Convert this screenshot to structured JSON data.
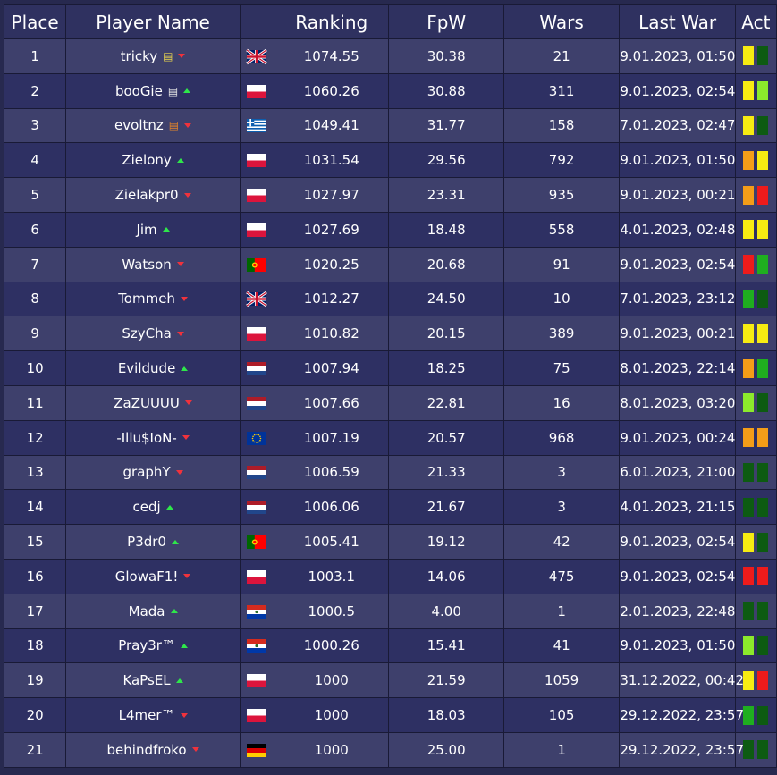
{
  "headers": {
    "place": "Place",
    "player_name": "Player Name",
    "flag": "",
    "ranking": "Ranking",
    "fpw": "FpW",
    "wars": "Wars",
    "last_war": "Last War",
    "act": "Act"
  },
  "colors": {
    "arrow_up": "#2ee64a",
    "arrow_down": "#f0323c",
    "gold_icon": "#e8d44d",
    "white_icon": "#e6e6e6",
    "orange_icon": "#e0832a"
  },
  "activity_colors": {
    "yellow": "#f7ec12",
    "dark_green": "#0d5b12",
    "light_green": "#8cea2c",
    "green": "#1fae1f",
    "orange": "#f49d18",
    "red": "#ee1b1b"
  },
  "rows": [
    {
      "place": "1",
      "name": "tricky",
      "icon": "ladder-icon",
      "icon_color": "#e8d44d",
      "trend": "down",
      "flag": "uk",
      "ranking": "1074.55",
      "fpw": "30.38",
      "wars": "21",
      "last_war": "9.01.2023, 01:50",
      "act": [
        "yellow",
        "dark_green"
      ]
    },
    {
      "place": "2",
      "name": "booGie",
      "icon": "ladder-icon",
      "icon_color": "#e6e6e6",
      "trend": "up",
      "flag": "pl",
      "ranking": "1060.26",
      "fpw": "30.88",
      "wars": "311",
      "last_war": "9.01.2023, 02:54",
      "act": [
        "yellow",
        "light_green"
      ]
    },
    {
      "place": "3",
      "name": "evoltnz",
      "icon": "ladder-icon",
      "icon_color": "#e0832a",
      "trend": "down",
      "flag": "gr",
      "ranking": "1049.41",
      "fpw": "31.77",
      "wars": "158",
      "last_war": "7.01.2023, 02:47",
      "act": [
        "yellow",
        "dark_green"
      ]
    },
    {
      "place": "4",
      "name": "Zielony",
      "icon": "",
      "icon_color": "",
      "trend": "up",
      "flag": "pl",
      "ranking": "1031.54",
      "fpw": "29.56",
      "wars": "792",
      "last_war": "9.01.2023, 01:50",
      "act": [
        "orange",
        "yellow"
      ]
    },
    {
      "place": "5",
      "name": "Zielakpr0",
      "icon": "",
      "icon_color": "",
      "trend": "down",
      "flag": "pl",
      "ranking": "1027.97",
      "fpw": "23.31",
      "wars": "935",
      "last_war": "9.01.2023, 00:21",
      "act": [
        "orange",
        "red"
      ]
    },
    {
      "place": "6",
      "name": "Jim",
      "icon": "",
      "icon_color": "",
      "trend": "up",
      "flag": "pl",
      "ranking": "1027.69",
      "fpw": "18.48",
      "wars": "558",
      "last_war": "4.01.2023, 02:48",
      "act": [
        "yellow",
        "yellow"
      ]
    },
    {
      "place": "7",
      "name": "Watson",
      "icon": "",
      "icon_color": "",
      "trend": "down",
      "flag": "pt",
      "ranking": "1020.25",
      "fpw": "20.68",
      "wars": "91",
      "last_war": "9.01.2023, 02:54",
      "act": [
        "red",
        "green"
      ]
    },
    {
      "place": "8",
      "name": "Tommeh",
      "icon": "",
      "icon_color": "",
      "trend": "down",
      "flag": "uk",
      "ranking": "1012.27",
      "fpw": "24.50",
      "wars": "10",
      "last_war": "7.01.2023, 23:12",
      "act": [
        "green",
        "dark_green"
      ]
    },
    {
      "place": "9",
      "name": "SzyCha",
      "icon": "",
      "icon_color": "",
      "trend": "down",
      "flag": "pl",
      "ranking": "1010.82",
      "fpw": "20.15",
      "wars": "389",
      "last_war": "9.01.2023, 00:21",
      "act": [
        "yellow",
        "yellow"
      ]
    },
    {
      "place": "10",
      "name": "Evildude",
      "icon": "",
      "icon_color": "",
      "trend": "up",
      "flag": "nl",
      "ranking": "1007.94",
      "fpw": "18.25",
      "wars": "75",
      "last_war": "8.01.2023, 22:14",
      "act": [
        "orange",
        "green"
      ]
    },
    {
      "place": "11",
      "name": "ZaZUUUU",
      "icon": "",
      "icon_color": "",
      "trend": "down",
      "flag": "nl",
      "ranking": "1007.66",
      "fpw": "22.81",
      "wars": "16",
      "last_war": "8.01.2023, 03:20",
      "act": [
        "light_green",
        "dark_green"
      ]
    },
    {
      "place": "12",
      "name": "-Illu$IoN-",
      "icon": "",
      "icon_color": "",
      "trend": "down",
      "flag": "eu",
      "ranking": "1007.19",
      "fpw": "20.57",
      "wars": "968",
      "last_war": "9.01.2023, 00:24",
      "act": [
        "orange",
        "orange"
      ]
    },
    {
      "place": "13",
      "name": "graphY",
      "icon": "",
      "icon_color": "",
      "trend": "down",
      "flag": "nl",
      "ranking": "1006.59",
      "fpw": "21.33",
      "wars": "3",
      "last_war": "6.01.2023, 21:00",
      "act": [
        "dark_green",
        "dark_green"
      ]
    },
    {
      "place": "14",
      "name": "cedj",
      "icon": "",
      "icon_color": "",
      "trend": "up",
      "flag": "nl",
      "ranking": "1006.06",
      "fpw": "21.67",
      "wars": "3",
      "last_war": "4.01.2023, 21:15",
      "act": [
        "dark_green",
        "dark_green"
      ]
    },
    {
      "place": "15",
      "name": "P3dr0",
      "icon": "",
      "icon_color": "",
      "trend": "up",
      "flag": "pt",
      "ranking": "1005.41",
      "fpw": "19.12",
      "wars": "42",
      "last_war": "9.01.2023, 02:54",
      "act": [
        "yellow",
        "dark_green"
      ]
    },
    {
      "place": "16",
      "name": "GlowaF1!",
      "icon": "",
      "icon_color": "",
      "trend": "down",
      "flag": "pl",
      "ranking": "1003.1",
      "fpw": "14.06",
      "wars": "475",
      "last_war": "9.01.2023, 02:54",
      "act": [
        "red",
        "red"
      ]
    },
    {
      "place": "17",
      "name": "Mada",
      "icon": "",
      "icon_color": "",
      "trend": "up",
      "flag": "py",
      "ranking": "1000.5",
      "fpw": "4.00",
      "wars": "1",
      "last_war": "2.01.2023, 22:48",
      "act": [
        "dark_green",
        "dark_green"
      ]
    },
    {
      "place": "18",
      "name": "Pray3r™",
      "icon": "",
      "icon_color": "",
      "trend": "up",
      "flag": "py",
      "ranking": "1000.26",
      "fpw": "15.41",
      "wars": "41",
      "last_war": "9.01.2023, 01:50",
      "act": [
        "light_green",
        "dark_green"
      ]
    },
    {
      "place": "19",
      "name": "KaPsEL",
      "icon": "",
      "icon_color": "",
      "trend": "up",
      "flag": "pl",
      "ranking": "1000",
      "fpw": "21.59",
      "wars": "1059",
      "last_war": "31.12.2022, 00:42",
      "act": [
        "yellow",
        "red"
      ]
    },
    {
      "place": "20",
      "name": "L4mer™",
      "icon": "",
      "icon_color": "",
      "trend": "down",
      "flag": "pl",
      "ranking": "1000",
      "fpw": "18.03",
      "wars": "105",
      "last_war": "29.12.2022, 23:57",
      "act": [
        "green",
        "dark_green"
      ]
    },
    {
      "place": "21",
      "name": "behindfroko",
      "icon": "",
      "icon_color": "",
      "trend": "down",
      "flag": "de",
      "ranking": "1000",
      "fpw": "25.00",
      "wars": "1",
      "last_war": "29.12.2022, 23:57",
      "act": [
        "dark_green",
        "dark_green"
      ]
    }
  ]
}
